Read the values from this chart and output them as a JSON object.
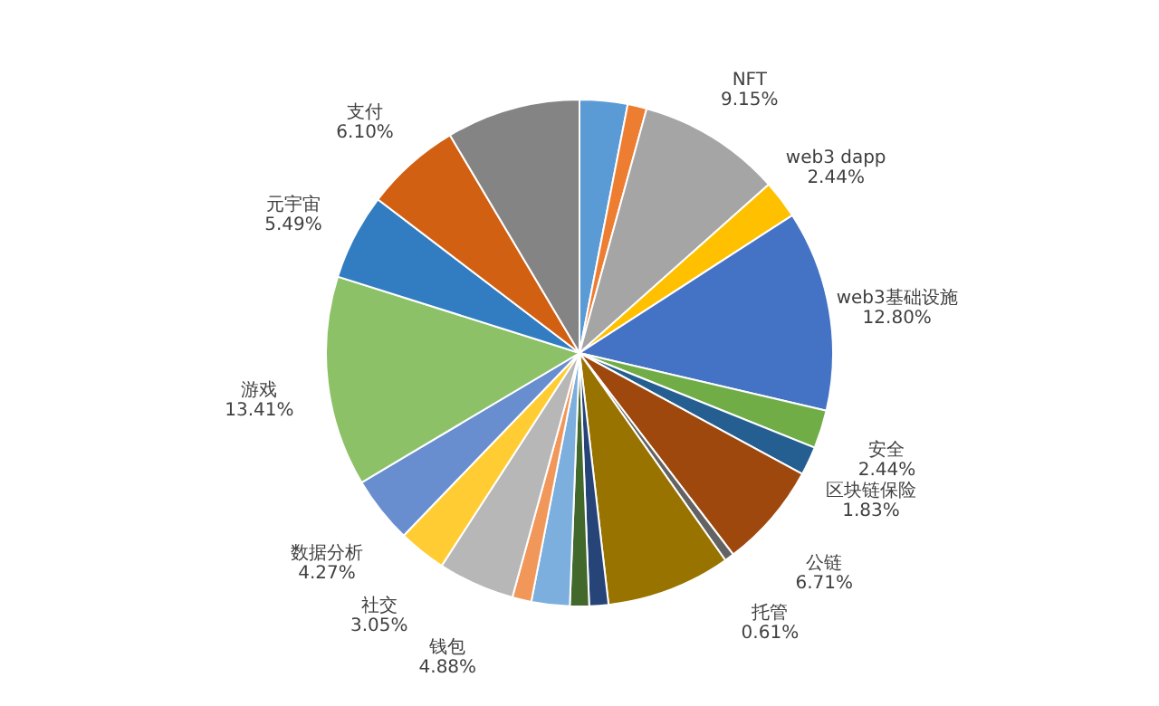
{
  "chart_data": {
    "type": "pie",
    "categories": [
      null,
      null,
      "NFT",
      "web3 dapp",
      "web3基础设施",
      "安全",
      "区块链保险",
      "公链",
      "托管",
      null,
      null,
      null,
      null,
      null,
      "钱包",
      "社交",
      "数据分析",
      "游戏",
      "元宇宙",
      "支付",
      null
    ],
    "values": [
      3.05,
      1.22,
      9.15,
      2.44,
      12.8,
      2.44,
      1.83,
      6.71,
      0.61,
      7.93,
      1.22,
      1.22,
      2.44,
      1.22,
      4.88,
      3.05,
      4.27,
      13.41,
      5.49,
      6.1,
      8.54
    ],
    "value_labels": [
      null,
      null,
      "9.15%",
      "2.44%",
      "12.80%",
      "2.44%",
      "1.83%",
      "6.71%",
      "0.61%",
      null,
      null,
      null,
      null,
      null,
      "4.88%",
      "3.05%",
      "4.27%",
      "13.41%",
      "5.49%",
      "6.10%",
      null
    ],
    "colors": [
      "#5b9bd5",
      "#ed7d31",
      "#a5a5a5",
      "#ffc000",
      "#4472c4",
      "#70ad47",
      "#255e91",
      "#9e480e",
      "#636363",
      "#997300",
      "#264478",
      "#43682b",
      "#7cafdd",
      "#f1975a",
      "#b7b7b7",
      "#ffcd33",
      "#698ed0",
      "#8cc168",
      "#327dc2",
      "#d26012",
      "#848484"
    ]
  }
}
